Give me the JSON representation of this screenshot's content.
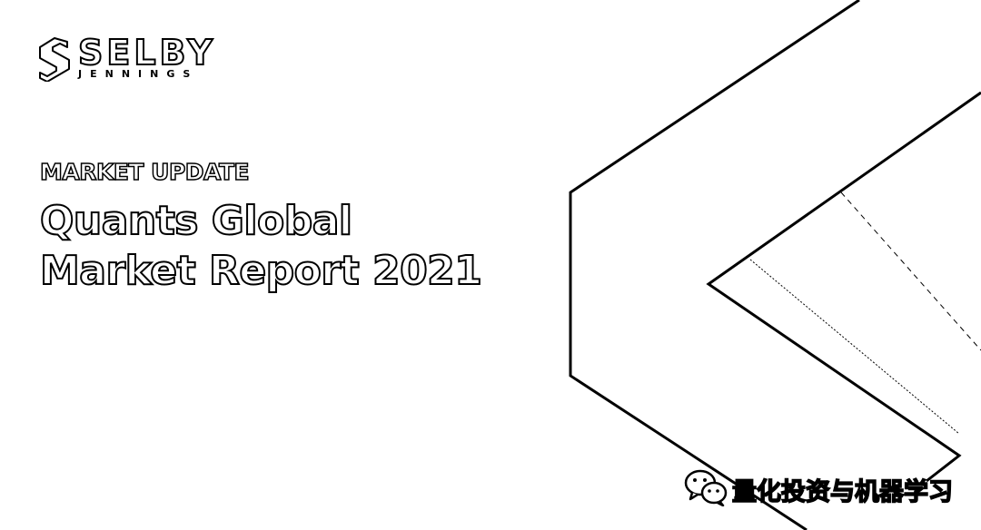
{
  "brand": {
    "name": "SELBY",
    "sub": "JENNINGS"
  },
  "hero": {
    "eyebrow": "MARKET UPDATE",
    "title_line1": "Quants Global",
    "title_line2": "Market Report 2021"
  },
  "watermark": {
    "icon": "wechat-icon",
    "text": "量化投资与机器学习"
  }
}
